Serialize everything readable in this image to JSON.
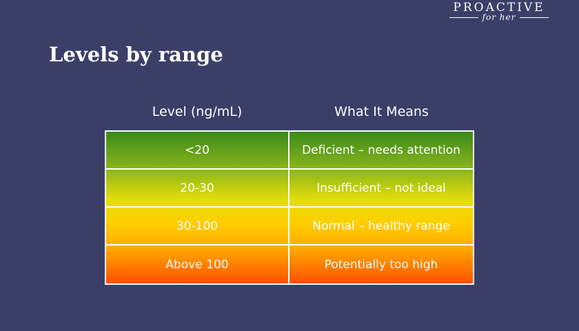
{
  "brand": {
    "name": "PROACTIVE",
    "tagline": "for her"
  },
  "title": "Levels by range",
  "table": {
    "headers": [
      "Level (ng/mL)",
      "What It Means"
    ],
    "rows": [
      [
        "<20",
        "Deficient – needs attention"
      ],
      [
        "20-30",
        "Insufficient – not ideal"
      ],
      [
        "30-100",
        "Normal – healthy range"
      ],
      [
        "Above 100",
        "Potentially too high"
      ]
    ]
  }
}
